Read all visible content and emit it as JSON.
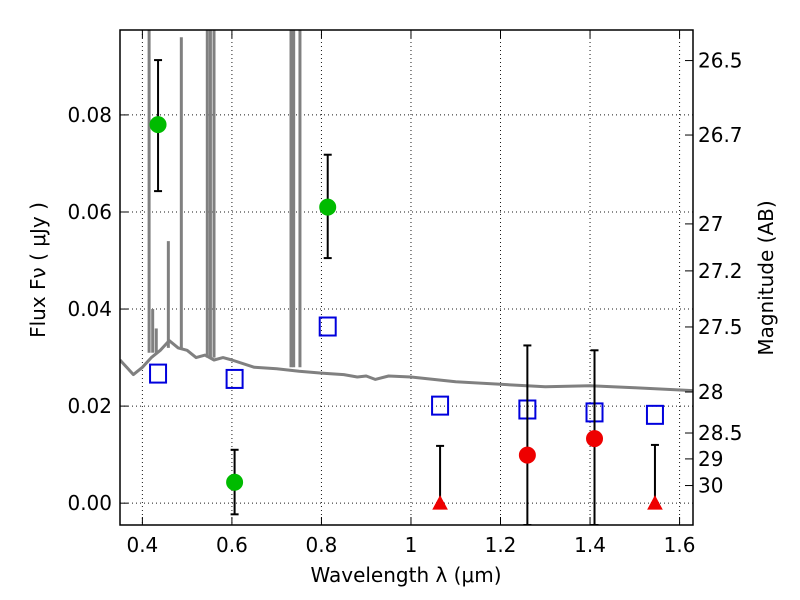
{
  "chart_data": {
    "type": "scatter",
    "xlabel": "Wavelength  λ (μm)",
    "ylabel": "Flux  Fν  ( μJy )",
    "ylabel_right": "Magnitude (AB)",
    "xlim": [
      0.35,
      1.63
    ],
    "ylim": [
      -0.0045,
      0.0975
    ],
    "grid": true,
    "xticks": [
      {
        "value": 0.4,
        "label": "0.4"
      },
      {
        "value": 0.6,
        "label": "0.6"
      },
      {
        "value": 0.8,
        "label": "0.8"
      },
      {
        "value": 1.0,
        "label": "1"
      },
      {
        "value": 1.2,
        "label": "1.2"
      },
      {
        "value": 1.4,
        "label": "1.4"
      },
      {
        "value": 1.6,
        "label": "1.6"
      }
    ],
    "yticks": [
      {
        "value": 0.0,
        "label": "0.00"
      },
      {
        "value": 0.02,
        "label": "0.02"
      },
      {
        "value": 0.04,
        "label": "0.04"
      },
      {
        "value": 0.06,
        "label": "0.06"
      },
      {
        "value": 0.08,
        "label": "0.08"
      }
    ],
    "mag_ticks": [
      {
        "value": 26.5,
        "label": "26.5"
      },
      {
        "value": 26.7,
        "label": "26.7"
      },
      {
        "value": 27.0,
        "label": "27"
      },
      {
        "value": 27.2,
        "label": "27.2"
      },
      {
        "value": 27.5,
        "label": "27.5"
      },
      {
        "value": 28.0,
        "label": "28"
      },
      {
        "value": 28.5,
        "label": "28.5"
      },
      {
        "value": 29.0,
        "label": "29"
      },
      {
        "value": 30.0,
        "label": "30"
      }
    ],
    "colors": {
      "model": "#808080",
      "green": "#00bb00",
      "red": "#ee0000",
      "box": "#0000dd",
      "errorbar": "#000000"
    },
    "model_continuum": [
      [
        0.35,
        0.0295
      ],
      [
        0.38,
        0.0265
      ],
      [
        0.4,
        0.028
      ],
      [
        0.42,
        0.03
      ],
      [
        0.44,
        0.0315
      ],
      [
        0.46,
        0.0335
      ],
      [
        0.48,
        0.032
      ],
      [
        0.5,
        0.0315
      ],
      [
        0.52,
        0.03
      ],
      [
        0.54,
        0.0305
      ],
      [
        0.56,
        0.0295
      ],
      [
        0.58,
        0.03
      ],
      [
        0.6,
        0.0295
      ],
      [
        0.65,
        0.028
      ],
      [
        0.7,
        0.0277
      ],
      [
        0.75,
        0.0272
      ],
      [
        0.8,
        0.0268
      ],
      [
        0.85,
        0.0265
      ],
      [
        0.88,
        0.026
      ],
      [
        0.9,
        0.0262
      ],
      [
        0.92,
        0.0255
      ],
      [
        0.95,
        0.0262
      ],
      [
        1.0,
        0.026
      ],
      [
        1.05,
        0.0255
      ],
      [
        1.1,
        0.025
      ],
      [
        1.2,
        0.0245
      ],
      [
        1.3,
        0.024
      ],
      [
        1.4,
        0.0242
      ],
      [
        1.5,
        0.0238
      ],
      [
        1.63,
        0.0232
      ]
    ],
    "model_lines": [
      {
        "x": 0.415,
        "peak": 0.1,
        "base": 0.031
      },
      {
        "x": 0.423,
        "peak": 0.04,
        "base": 0.031
      },
      {
        "x": 0.431,
        "peak": 0.036,
        "base": 0.031
      },
      {
        "x": 0.458,
        "peak": 0.054,
        "base": 0.032
      },
      {
        "x": 0.487,
        "peak": 0.096,
        "base": 0.032
      },
      {
        "x": 0.545,
        "peak": 0.1,
        "base": 0.03
      },
      {
        "x": 0.552,
        "peak": 0.1,
        "base": 0.03
      },
      {
        "x": 0.56,
        "peak": 0.1,
        "base": 0.03
      },
      {
        "x": 0.732,
        "peak": 0.1,
        "base": 0.028
      },
      {
        "x": 0.738,
        "peak": 0.1,
        "base": 0.028
      },
      {
        "x": 0.752,
        "peak": 0.1,
        "base": 0.028
      }
    ],
    "detections_green": [
      {
        "x": 0.435,
        "y": 0.078,
        "yerr_low": 0.0643,
        "yerr_high": 0.0913
      },
      {
        "x": 0.606,
        "y": 0.0043,
        "yerr_low": -0.0023,
        "yerr_high": 0.011
      },
      {
        "x": 0.814,
        "y": 0.061,
        "yerr_low": 0.0505,
        "yerr_high": 0.0718
      }
    ],
    "detections_red": [
      {
        "x": 1.26,
        "y": 0.0099,
        "yerr_low": -0.0045,
        "yerr_high": 0.0325
      },
      {
        "x": 1.41,
        "y": 0.0133,
        "yerr_low": -0.0045,
        "yerr_high": 0.0315
      }
    ],
    "upper_limits_red": [
      {
        "x": 1.065,
        "y": 0.0,
        "yerr_low": 0.0,
        "yerr_high": 0.0118
      },
      {
        "x": 1.545,
        "y": 0.0,
        "yerr_low": 0.0,
        "yerr_high": 0.012
      }
    ],
    "model_photometry": [
      {
        "x": 0.435,
        "y": 0.0267
      },
      {
        "x": 0.606,
        "y": 0.0256
      },
      {
        "x": 0.814,
        "y": 0.0364
      },
      {
        "x": 1.065,
        "y": 0.0201
      },
      {
        "x": 1.26,
        "y": 0.0193
      },
      {
        "x": 1.41,
        "y": 0.0187
      },
      {
        "x": 1.545,
        "y": 0.0182
      }
    ]
  }
}
